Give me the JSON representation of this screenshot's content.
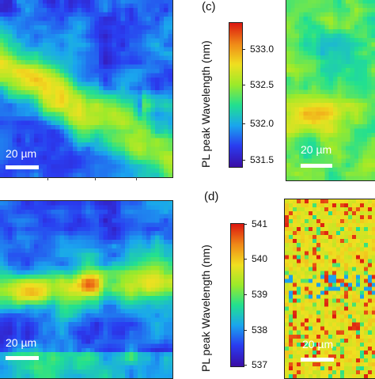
{
  "panels": [
    {
      "id": "a",
      "label": "",
      "scalebar": "20 µm"
    },
    {
      "id": "b",
      "label": "",
      "scalebar": "20 µm"
    },
    {
      "id": "c",
      "label": "(c)",
      "scalebar": "20 µm"
    },
    {
      "id": "d",
      "label": "(d)",
      "scalebar": "20 µm"
    }
  ],
  "colorbars": [
    {
      "id": "c",
      "title": "PL peak Wavelength (nm)",
      "ticks": [
        "533.0",
        "532.5",
        "532.0",
        "531.5"
      ],
      "range": [
        531.4,
        533.3
      ]
    },
    {
      "id": "d",
      "title": "PL peak Wavelength (nm)",
      "ticks": [
        "541",
        "540",
        "539",
        "538",
        "537"
      ],
      "range": [
        537,
        541
      ]
    }
  ],
  "colors": {
    "colormap": [
      "#3a0fa8",
      "#2a3cf0",
      "#1aa6ee",
      "#22e090",
      "#9bea2a",
      "#f0e020",
      "#f08a18",
      "#dd1a10"
    ]
  }
}
